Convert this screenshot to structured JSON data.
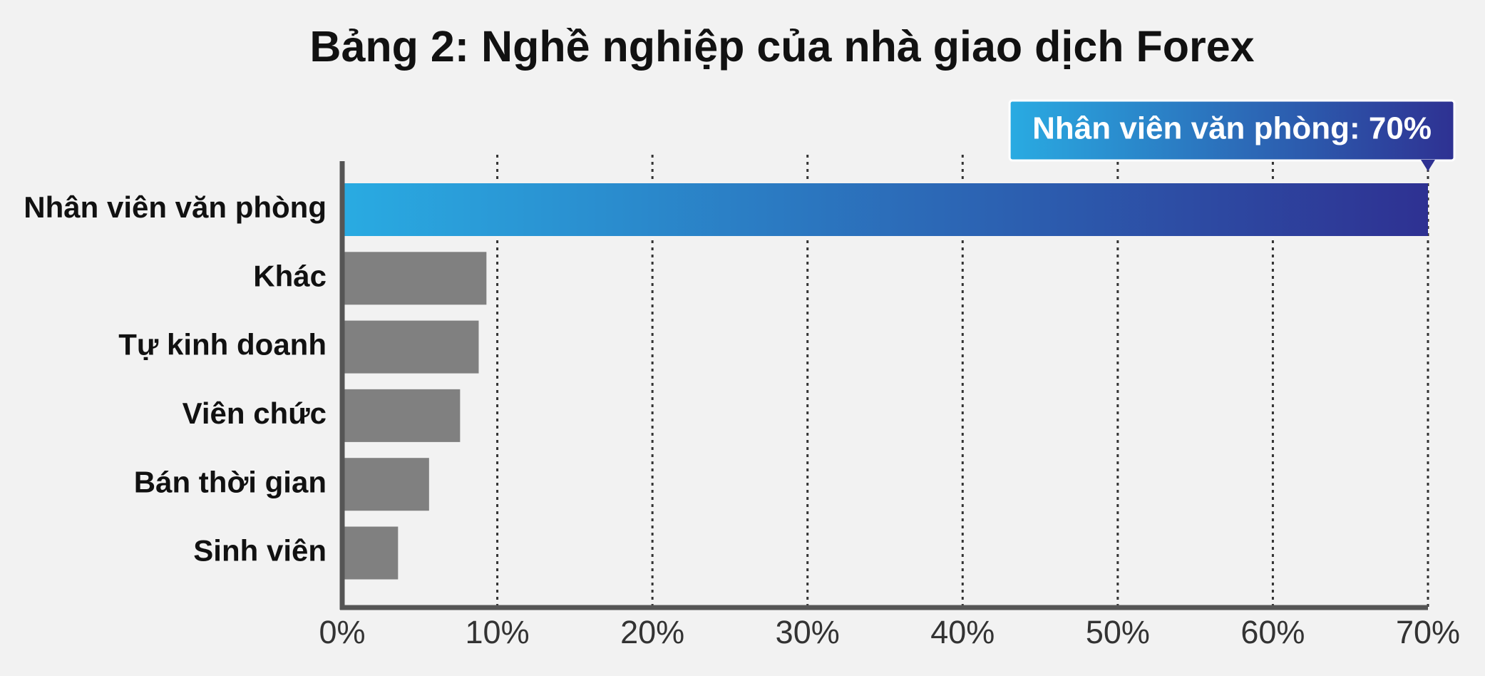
{
  "chart_data": {
    "type": "bar",
    "orientation": "horizontal",
    "title": "Bảng 2: Nghề nghiệp của nhà giao dịch Forex",
    "categories": [
      "Nhân viên văn phòng",
      "Khác",
      "Tự kinh doanh",
      "Viên chức",
      "Bán thời gian",
      "Sinh viên"
    ],
    "values": [
      70,
      9.3,
      8.8,
      7.6,
      5.6,
      3.6
    ],
    "value_labels": [
      "Nhân viên văn phòng: 70%",
      null,
      null,
      null,
      null,
      null
    ],
    "color": "#808080",
    "highlight_colors": [
      "#29abe2",
      "#2e3192"
    ],
    "xlim": [
      0,
      70
    ],
    "xticks": [
      {
        "value": 0,
        "label": "0%"
      },
      {
        "value": 10,
        "label": "10%"
      },
      {
        "value": 20,
        "label": "20%"
      },
      {
        "value": 30,
        "label": "30%"
      },
      {
        "value": 40,
        "label": "40%"
      },
      {
        "value": 50,
        "label": "50%"
      },
      {
        "value": 60,
        "label": "60%"
      },
      {
        "value": 70,
        "label": "70%"
      }
    ],
    "grid": true
  }
}
